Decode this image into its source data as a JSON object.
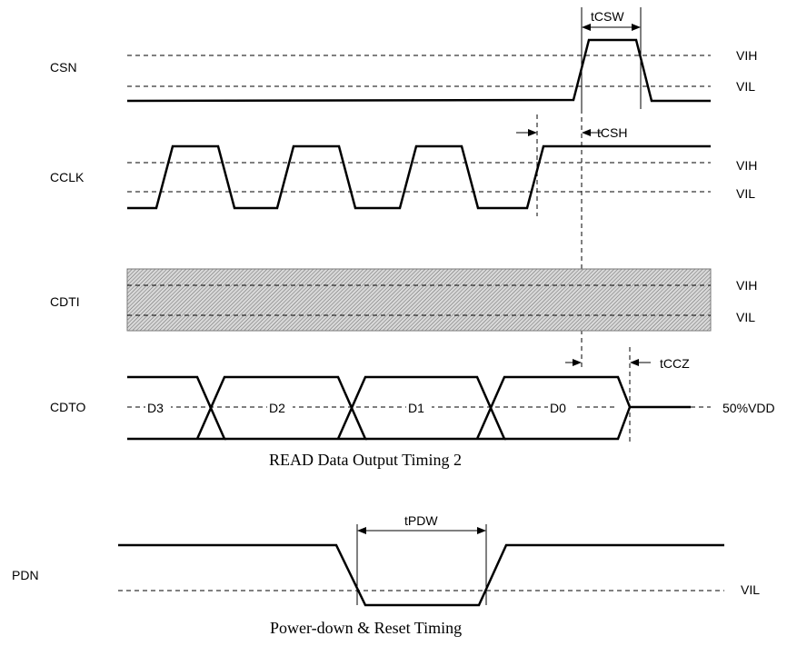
{
  "signals": {
    "csn": "CSN",
    "cclk": "CCLK",
    "cdti": "CDTI",
    "cdto": "CDTO",
    "pdn": "PDN"
  },
  "levels": {
    "vih": "VIH",
    "vil": "VIL",
    "half_vdd": "50%VDD"
  },
  "timings": {
    "tcsw": "tCSW",
    "tcsh": "tCSH",
    "tccz": "tCCZ",
    "tpdw": "tPDW"
  },
  "data_bits": [
    "D3",
    "D2",
    "D1",
    "D0"
  ],
  "captions": {
    "read_timing": "READ Data Output Timing 2",
    "power_down": "Power-down & Reset Timing"
  }
}
